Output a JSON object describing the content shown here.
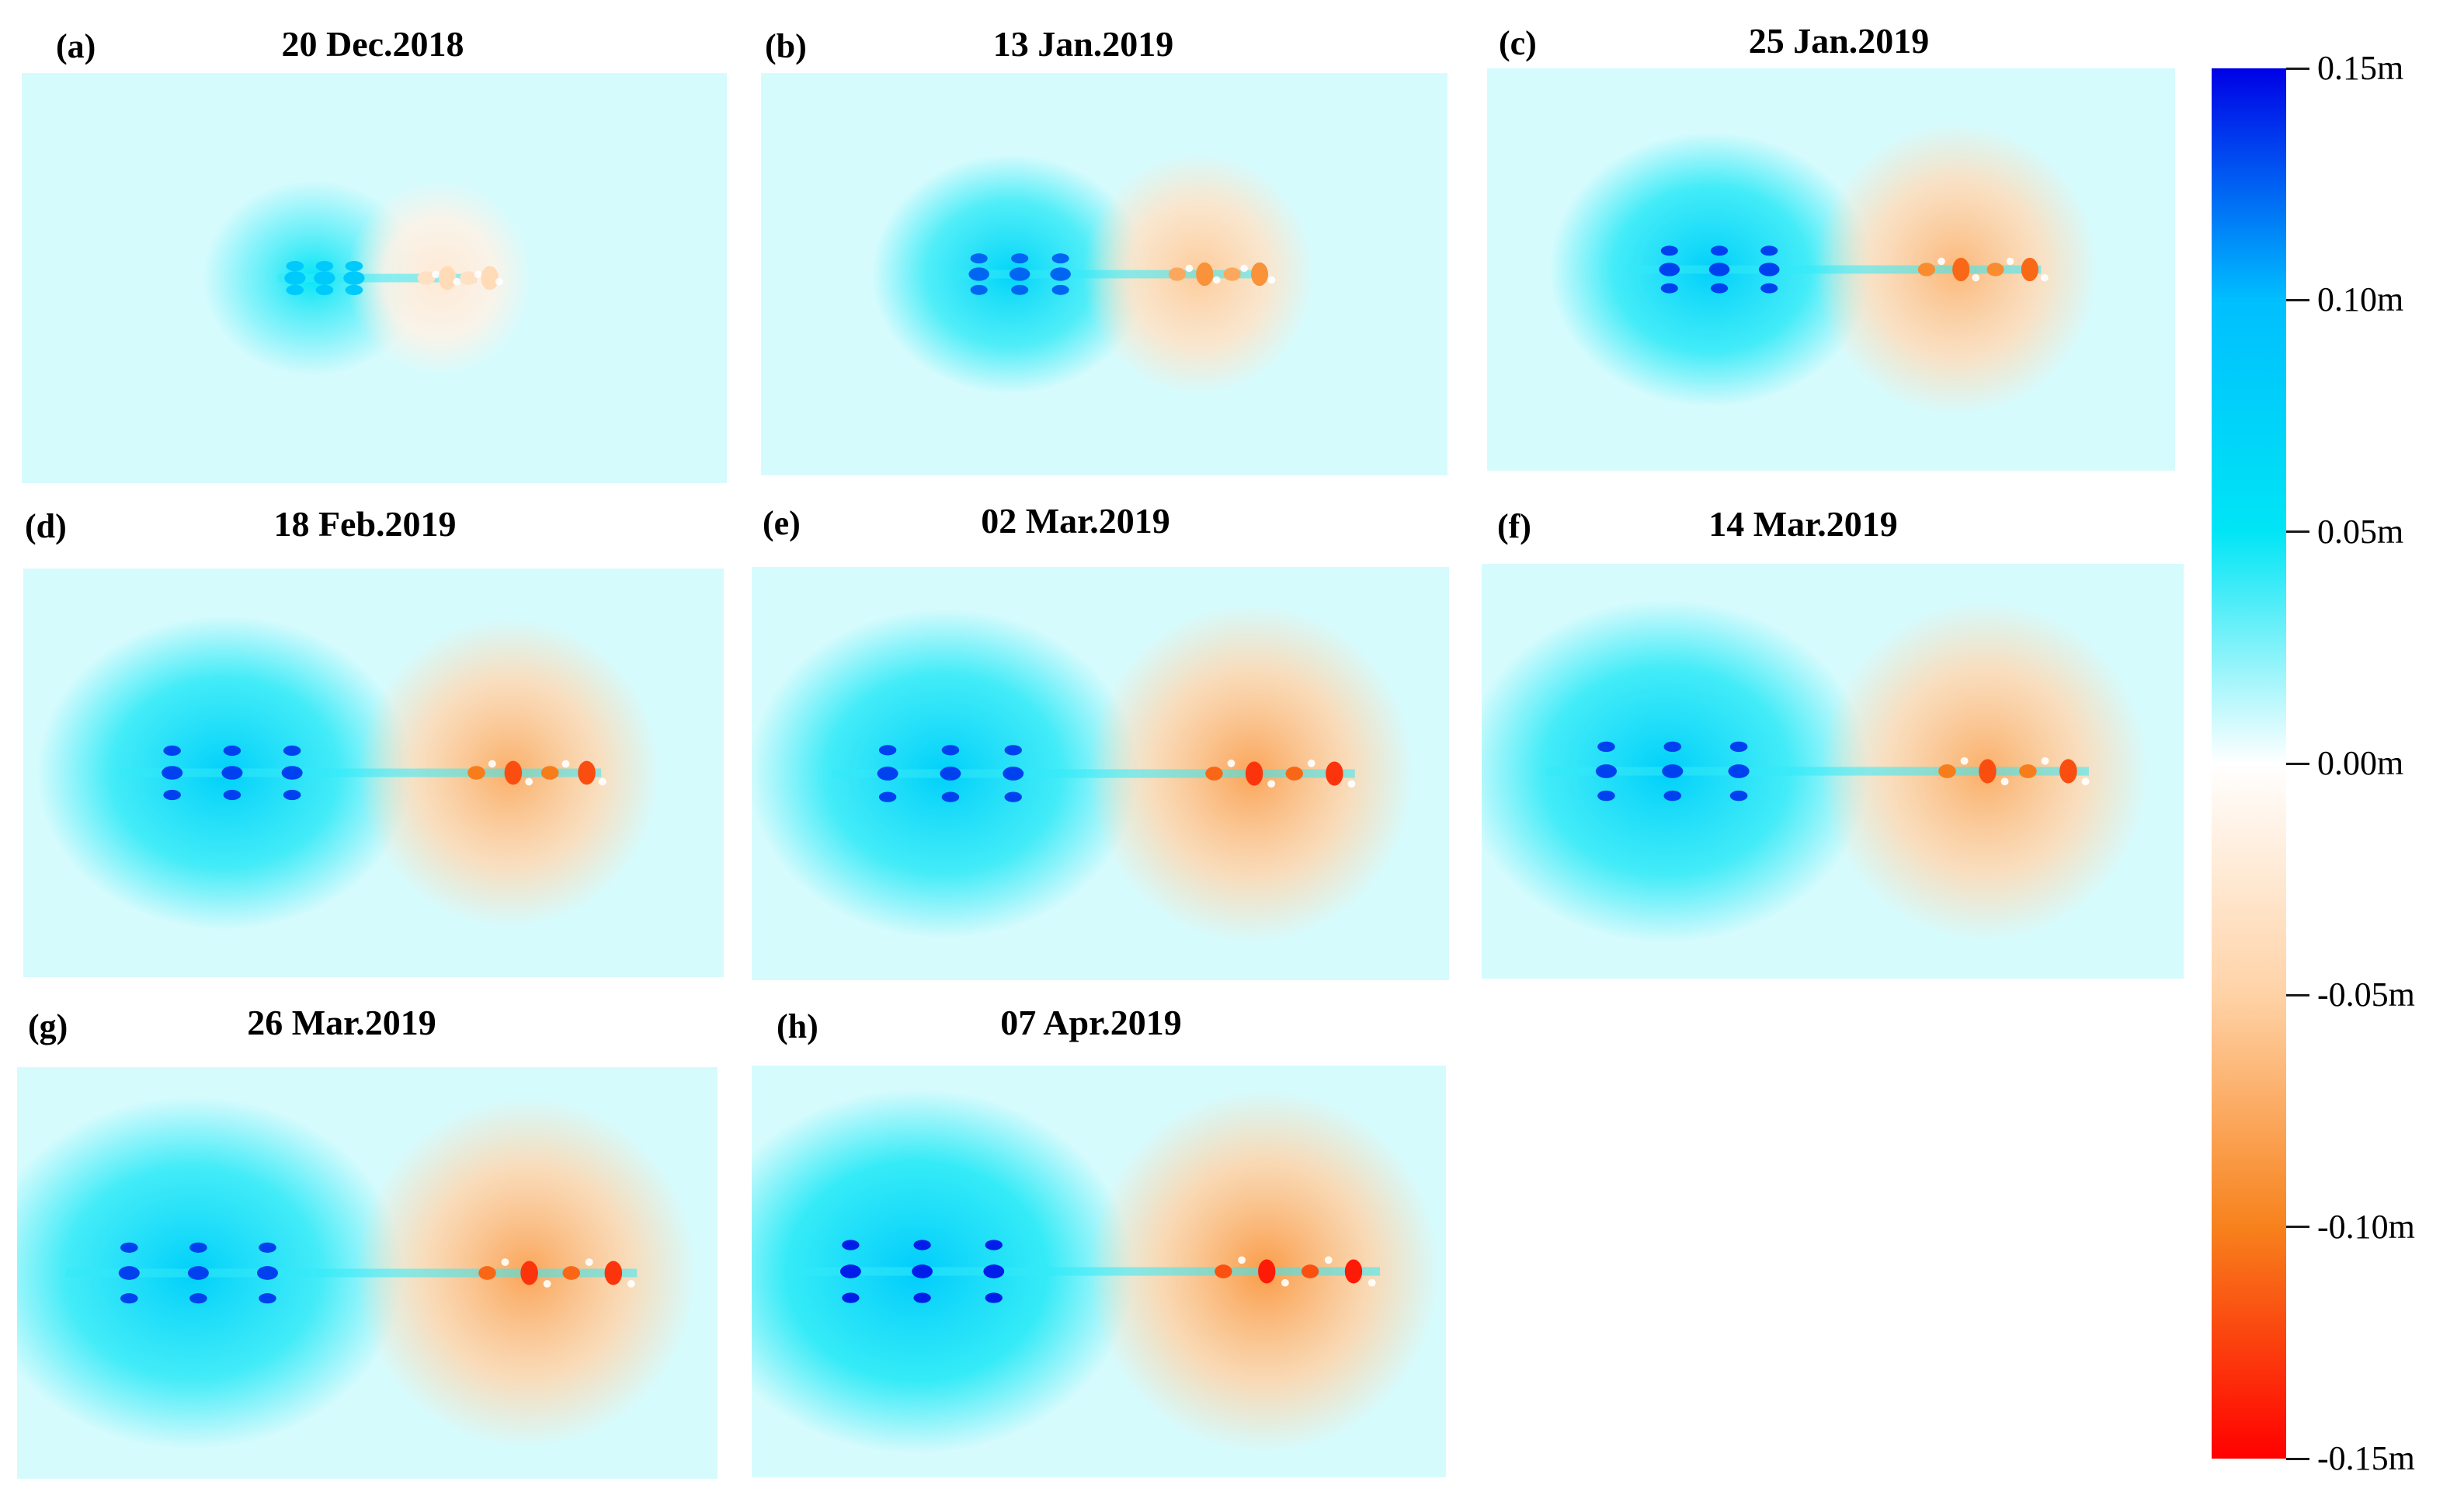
{
  "chart_data": {
    "type": "heatmap",
    "quantity": "displacement",
    "unit": "m",
    "panels": [
      {
        "id": "a",
        "letter": "(a)",
        "title": "20 Dec.2018",
        "pos_extent": 0.25,
        "neg_extent": 0.3,
        "pos_peak": 0.09,
        "neg_peak": -0.04
      },
      {
        "id": "b",
        "letter": "(b)",
        "title": "13 Jan.2019",
        "pos_extent": 0.45,
        "neg_extent": 0.5,
        "pos_peak": 0.13,
        "neg_peak": -0.09
      },
      {
        "id": "c",
        "letter": "(c)",
        "title": "25 Jan.2019",
        "pos_extent": 0.6,
        "neg_extent": 0.7,
        "pos_peak": 0.14,
        "neg_peak": -0.11
      },
      {
        "id": "d",
        "letter": "(d)",
        "title": "18 Feb.2019",
        "pos_extent": 0.75,
        "neg_extent": 0.75,
        "pos_peak": 0.14,
        "neg_peak": -0.12
      },
      {
        "id": "e",
        "letter": "(e)",
        "title": "02 Mar.2019",
        "pos_extent": 0.8,
        "neg_extent": 0.85,
        "pos_peak": 0.14,
        "neg_peak": -0.13
      },
      {
        "id": "f",
        "letter": "(f)",
        "title": "14 Mar.2019",
        "pos_extent": 0.85,
        "neg_extent": 0.85,
        "pos_peak": 0.14,
        "neg_peak": -0.12
      },
      {
        "id": "g",
        "letter": "(g)",
        "title": "26 Mar.2019",
        "pos_extent": 0.9,
        "neg_extent": 0.9,
        "pos_peak": 0.14,
        "neg_peak": -0.13
      },
      {
        "id": "h",
        "letter": "(h)",
        "title": "07 Apr.2019",
        "pos_extent": 0.95,
        "neg_extent": 0.95,
        "pos_peak": 0.15,
        "neg_peak": -0.14
      }
    ],
    "colorbar": {
      "range": [
        -0.15,
        0.15
      ],
      "ticks": [
        {
          "value": 0.15,
          "label": "0.15m"
        },
        {
          "value": 0.1,
          "label": "0.10m"
        },
        {
          "value": 0.05,
          "label": "0.05m"
        },
        {
          "value": 0.0,
          "label": "0.00m"
        },
        {
          "value": -0.05,
          "label": "-0.05m"
        },
        {
          "value": -0.1,
          "label": "-0.10m"
        },
        {
          "value": -0.15,
          "label": "-0.15m"
        }
      ],
      "colors": [
        "#0000e6",
        "#00bfff",
        "#00e5f5",
        "#ffffff",
        "#ffd2a6",
        "#f7821c",
        "#ff0000"
      ]
    }
  }
}
